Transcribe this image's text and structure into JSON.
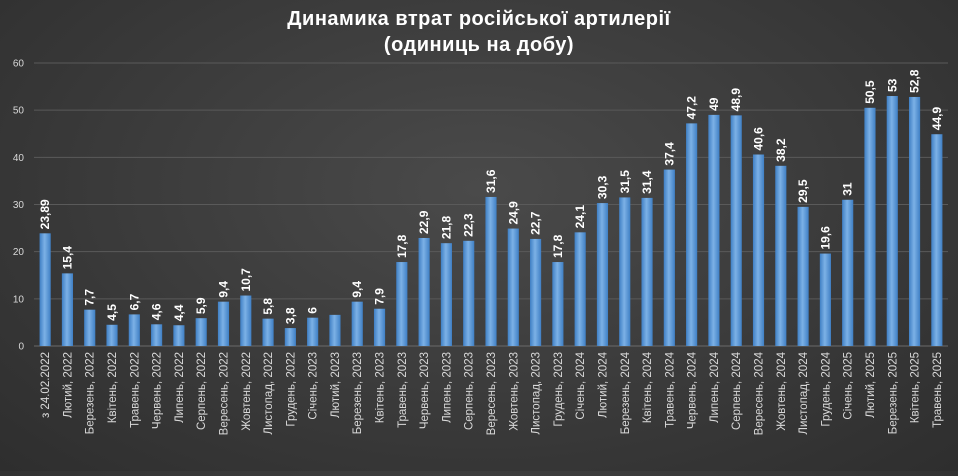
{
  "chart_data": {
    "type": "bar",
    "title_line1": "Динамика втрат російської артилерії",
    "title_line2": "(одиниць на добу)",
    "xlabel": "",
    "ylabel": "",
    "ylim": [
      0,
      60
    ],
    "yticks": [
      "0",
      "10",
      "20",
      "30",
      "40",
      "50",
      "60"
    ],
    "grid": true,
    "legend": "none",
    "bar_color": "#5b9bd5",
    "categories": [
      "з 24.02.2022",
      "Лютий, 2022",
      "Березень, 2022",
      "Квітень, 2022",
      "Травень, 2022",
      "Червень, 2022",
      "Липень, 2022",
      "Серпень, 2022",
      "Вересень, 2022",
      "Жовтень, 2022",
      "Листопад, 2022",
      "Грудень, 2022",
      "Січень, 2023",
      "Лютий, 2023",
      "Березень, 2023",
      "Квітень, 2023",
      "Травень, 2023",
      "Червень, 2023",
      "Липень, 2023",
      "Серпень, 2023",
      "Вересень, 2023",
      "Жовтень, 2023",
      "Листопад, 2023",
      "Грудень, 2023",
      "Січень, 2024",
      "Лютий, 2024",
      "Березень, 2024",
      "Квітень, 2024",
      "Травень, 2024",
      "Червень, 2024",
      "Липень, 2024",
      "Серпень, 2024",
      "Вересень, 2024",
      "Жовтень, 2024",
      "Листопад, 2024",
      "Грудень, 2024",
      "Січень, 2025",
      "Лютий, 2025",
      "Березень, 2025",
      "Квітень, 2025",
      "Травень, 2025"
    ],
    "values": [
      23.89,
      15.4,
      7.7,
      4.5,
      6.7,
      4.6,
      4.4,
      5.9,
      9.4,
      10.7,
      5.8,
      3.8,
      6,
      6.6,
      9.4,
      7.9,
      17.8,
      22.9,
      21.8,
      22.3,
      31.6,
      24.9,
      22.7,
      17.8,
      24.1,
      30.3,
      31.5,
      31.4,
      37.4,
      47.2,
      49,
      48.9,
      40.6,
      38.2,
      29.5,
      19.6,
      31,
      50.5,
      53,
      52.8,
      44.9
    ],
    "data_labels": [
      "23,89",
      "15,4",
      "7,7",
      "4,5",
      "6,7",
      "4,6",
      "4,4",
      "5,9",
      "9,4",
      "10,7",
      "5,8",
      "3,8",
      "6",
      "",
      "9,4",
      "7,9",
      "17,8",
      "22,9",
      "21,8",
      "22,3",
      "31,6",
      "24,9",
      "22,7",
      "17,8",
      "24,1",
      "30,3",
      "31,5",
      "31,4",
      "37,4",
      "47,2",
      "49",
      "48,9",
      "40,6",
      "38,2",
      "29,5",
      "19,6",
      "31",
      "50,5",
      "53",
      "52,8",
      "44,9"
    ]
  }
}
